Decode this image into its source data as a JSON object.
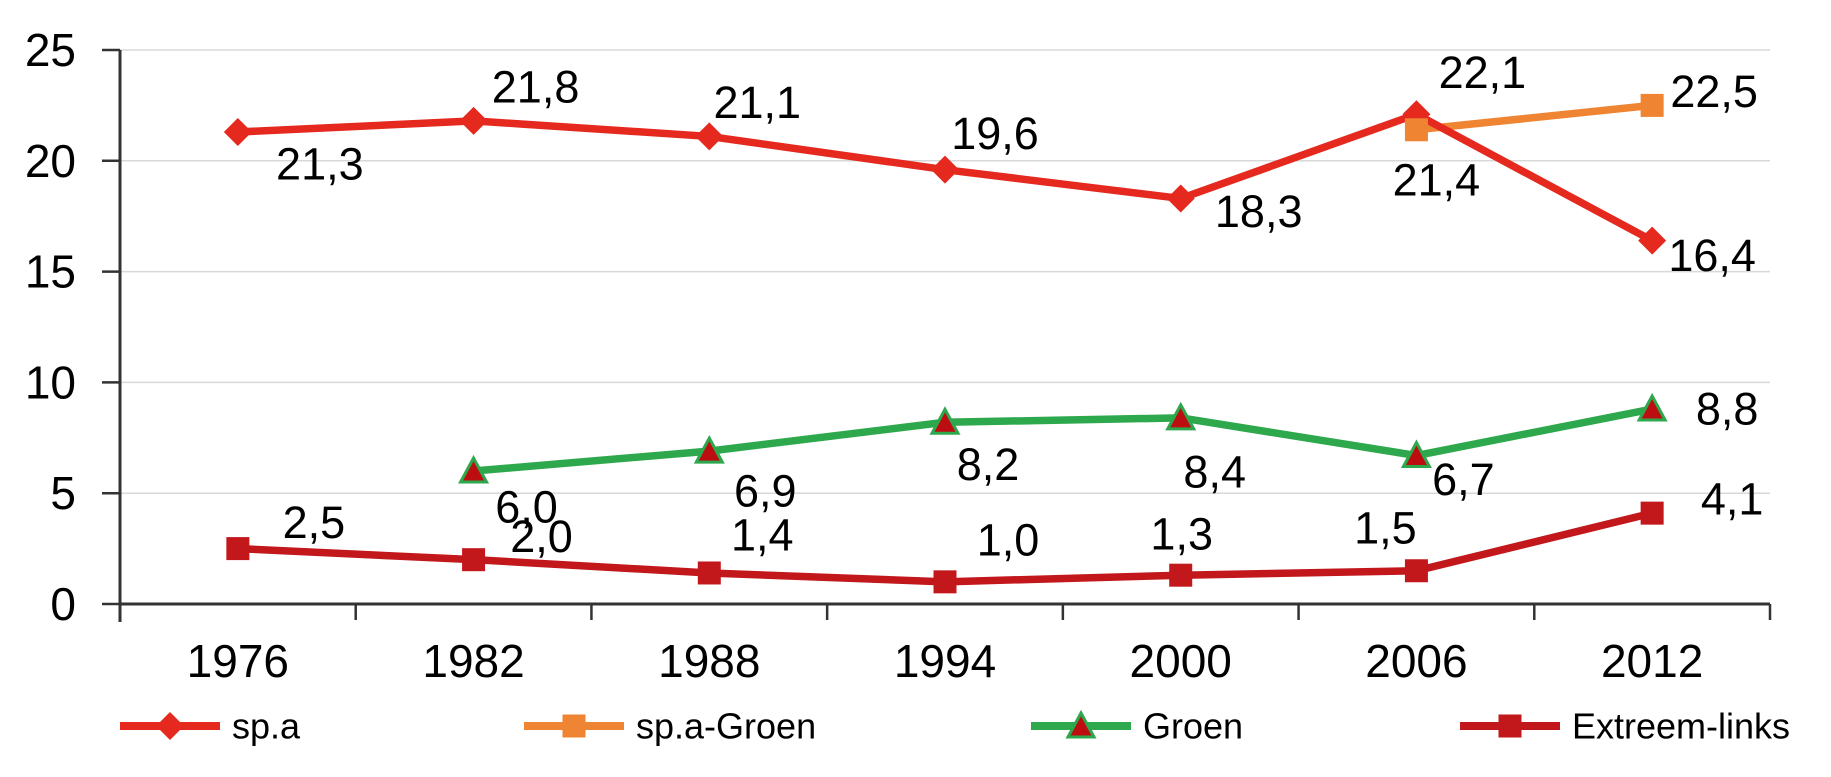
{
  "chart_data": {
    "type": "line",
    "title": "",
    "xlabel": "",
    "ylabel": "",
    "categories": [
      "1976",
      "1982",
      "1988",
      "1994",
      "2000",
      "2006",
      "2012"
    ],
    "ylim": [
      0,
      25
    ],
    "yticks": [
      "0",
      "5",
      "10",
      "15",
      "20",
      "25"
    ],
    "grid": "horizontal",
    "legend_position": "bottom",
    "decimal_separator": ",",
    "colors": {
      "axis": "#333333",
      "gridline": "#d8d8d8",
      "text": "#000000"
    },
    "series": [
      {
        "name": "Groen",
        "color": "#2EA84D",
        "marker": "triangle",
        "marker_fill": "#BC0E10",
        "z_marker": 1,
        "values": [
          null,
          6.0,
          6.9,
          8.2,
          8.4,
          6.7,
          8.8
        ],
        "labels": [
          null,
          "6,0",
          "6,9",
          "8,2",
          "8,4",
          "6,7",
          "8,8"
        ],
        "label_offsets": [
          null,
          [
            53,
            36
          ],
          [
            56,
            40
          ],
          [
            43,
            42
          ],
          [
            34,
            54
          ],
          [
            47,
            24
          ],
          [
            75,
            0
          ]
        ]
      },
      {
        "name": "Extreem-links",
        "color": "#C2171B",
        "marker": "square",
        "z_marker": 2,
        "values": [
          2.5,
          2.0,
          1.4,
          1.0,
          1.3,
          1.5,
          4.1
        ],
        "labels": [
          "2,5",
          "2,0",
          "1,4",
          "1,0",
          "1,3",
          "1,5",
          "4,1"
        ],
        "label_offsets": [
          [
            76,
            -26
          ],
          [
            68,
            -23
          ],
          [
            53,
            -38
          ],
          [
            63,
            -42
          ],
          [
            1,
            -41
          ],
          [
            -31,
            -43
          ],
          [
            80,
            -14
          ]
        ]
      },
      {
        "name": "sp.a-Groen",
        "color": "#EF8432",
        "marker": "square",
        "z_marker": 4,
        "values": [
          null,
          null,
          null,
          null,
          null,
          21.4,
          22.5
        ],
        "labels": [
          null,
          null,
          null,
          null,
          null,
          "21,4",
          "22,5"
        ],
        "label_offsets": [
          null,
          null,
          null,
          null,
          null,
          [
            20,
            50
          ],
          [
            62,
            -14
          ]
        ]
      },
      {
        "name": "sp.a",
        "color": "#E5291E",
        "marker": "diamond",
        "z_marker": 3,
        "values": [
          21.3,
          21.8,
          21.1,
          19.6,
          18.3,
          22.1,
          16.4
        ],
        "labels": [
          "21,3",
          "21,8",
          "21,1",
          "19,6",
          "18,3",
          "22,1",
          "16,4"
        ],
        "label_offsets": [
          [
            82,
            32
          ],
          [
            62,
            -34
          ],
          [
            48,
            -34
          ],
          [
            50,
            -36
          ],
          [
            78,
            13
          ],
          [
            66,
            -42
          ],
          [
            60,
            15
          ]
        ]
      }
    ],
    "legend": [
      "sp.a",
      "sp.a-Groen",
      "Groen",
      "Extreem-links"
    ]
  }
}
